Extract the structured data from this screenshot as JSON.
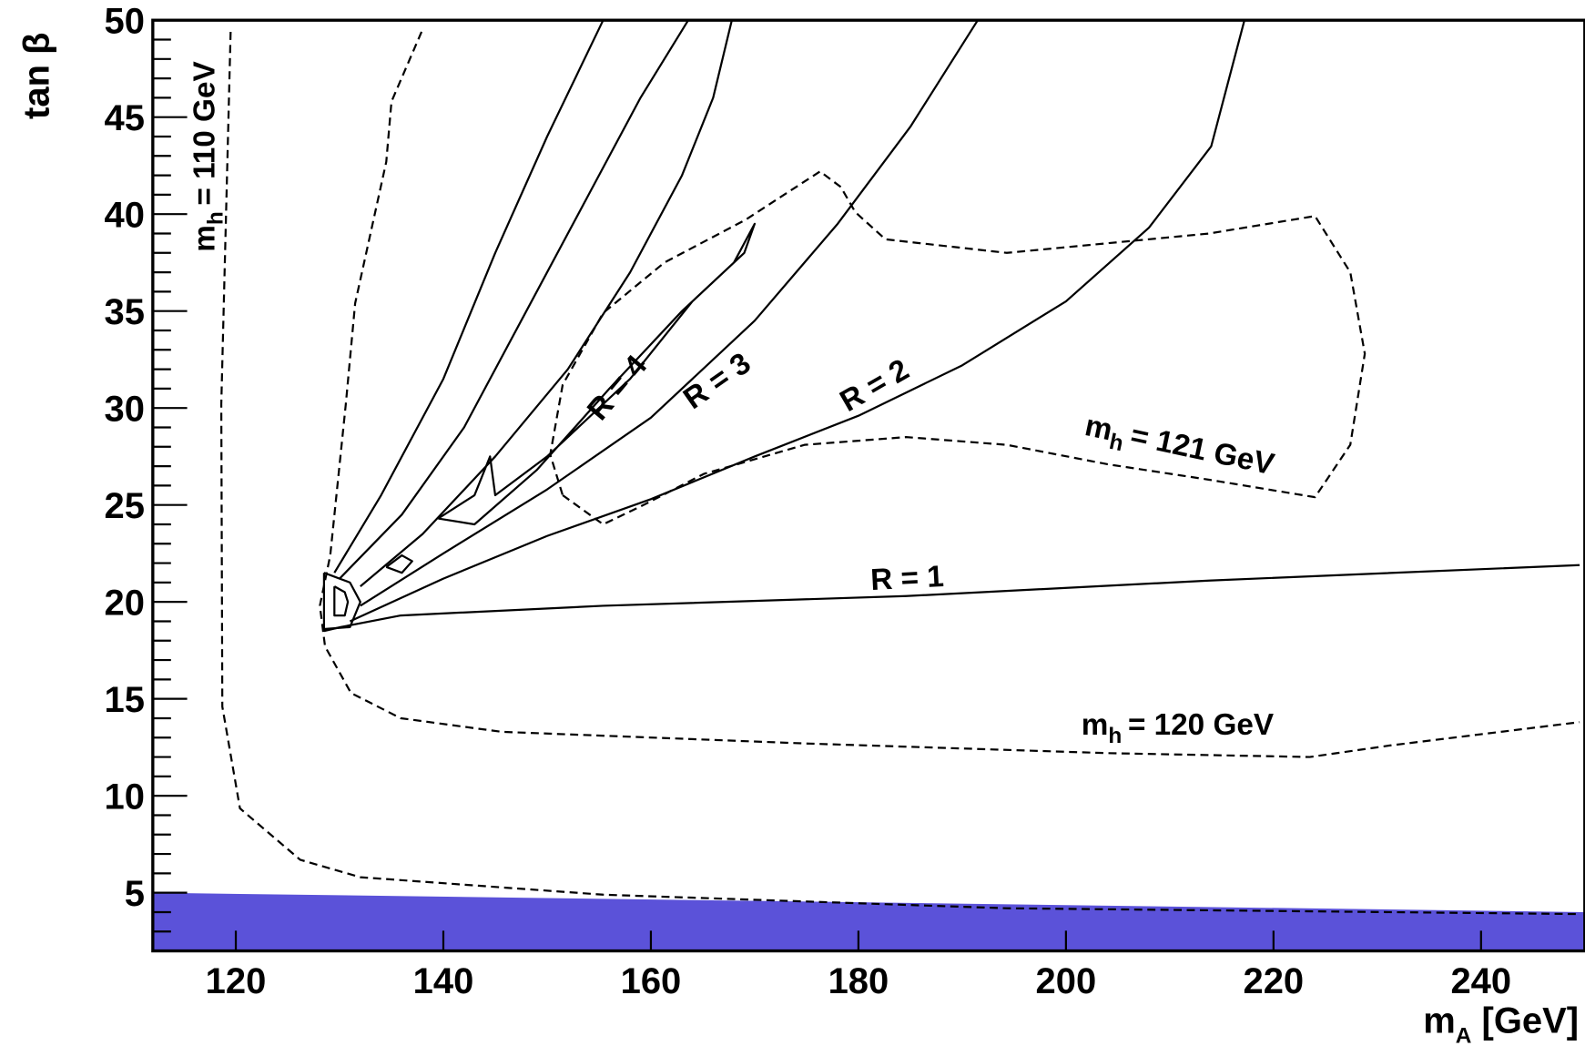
{
  "chart_data": {
    "type": "contour",
    "xlim": [
      112,
      250
    ],
    "ylim": [
      2,
      50
    ],
    "xticks": [
      120,
      140,
      160,
      180,
      200,
      220,
      240
    ],
    "yticks": [
      5,
      10,
      15,
      20,
      25,
      30,
      35,
      40,
      45,
      50
    ],
    "yminorticks": [
      2,
      3,
      4,
      6,
      7,
      8,
      9,
      11,
      12,
      13,
      14,
      16,
      17,
      18,
      19,
      21,
      22,
      23,
      24,
      26,
      27,
      28,
      29,
      31,
      32,
      33,
      34,
      36,
      37,
      38,
      39,
      41,
      42,
      43,
      44,
      46,
      47,
      48,
      49
    ],
    "x_label": {
      "symbol": "m",
      "subscript": "A",
      "text": "[GeV]"
    },
    "y_label": "tan β",
    "band": {
      "color": "#5b52d9",
      "x": [
        112,
        250
      ],
      "upper": [
        5,
        4
      ]
    },
    "series": [
      {
        "color": "#000000",
        "style": "dashed",
        "x": [
          119.5,
          118.6,
          118.7,
          120.4,
          126.2,
          132,
          155.4,
          194.3,
          249.5
        ],
        "y": [
          49.4,
          30.2,
          14.6,
          9.35,
          6.7,
          5.8,
          4.9,
          4.2,
          3.9
        ]
      },
      {
        "color": "#000000",
        "style": "dashed",
        "x": [
          137.9,
          135,
          134.5,
          131.5,
          130.6,
          129.1,
          128.1,
          128.6,
          131.1,
          135.9,
          145.6,
          174.8,
          204,
          223.5,
          231.3,
          249.5
        ],
        "y": [
          49.4,
          45.8,
          42.7,
          35.4,
          30.2,
          22.4,
          19.8,
          17.7,
          15.3,
          14,
          13.3,
          12.7,
          12.2,
          12,
          12.6,
          13.8
        ]
      },
      {
        "color": "#000000",
        "style": "dashed",
        "x": [
          151.5,
          155.4,
          159.3,
          165.1,
          174.8,
          184.6,
          194.3,
          204,
          213.8,
          224,
          227.4,
          228.8,
          227.4,
          224,
          213.8,
          194.3,
          182.6,
          179.7,
          178.3,
          176.3,
          169.1,
          161.3,
          155.4,
          151.5,
          150.3,
          151.5
        ],
        "y": [
          25.5,
          24,
          25,
          26.6,
          28.1,
          28.5,
          28.1,
          27.1,
          26.3,
          25.4,
          28.1,
          32.8,
          37,
          39.9,
          39,
          38,
          38.7,
          40.1,
          41.4,
          42.2,
          39.7,
          37.5,
          34.9,
          31.2,
          27.6,
          25.5
        ]
      },
      {
        "color": "#000000",
        "style": "solid",
        "x": [
          128.5,
          130.1,
          135.9,
          155.4,
          184.6,
          213.8,
          249.5
        ],
        "y": [
          18.5,
          18.7,
          19.3,
          19.8,
          20.3,
          21.1,
          21.9
        ]
      },
      {
        "color": "#000000",
        "style": "solid",
        "x": [
          131,
          140,
          150,
          160,
          170,
          180,
          190,
          200,
          208,
          214,
          217.2
        ],
        "y": [
          19,
          21.2,
          23.4,
          25.3,
          27.5,
          29.6,
          32.2,
          35.5,
          39.3,
          43.5,
          50
        ]
      },
      {
        "color": "#000000",
        "style": "solid",
        "x": [
          132,
          140,
          150,
          160,
          170,
          178,
          185,
          191.5
        ],
        "y": [
          19.8,
          22.5,
          25.8,
          29.5,
          34.5,
          39.5,
          44.5,
          50
        ]
      },
      {
        "color": "#000000",
        "style": "solid",
        "x": [
          132,
          138,
          145,
          152,
          158,
          163,
          166,
          167.8
        ],
        "y": [
          20.8,
          23.5,
          27.5,
          32,
          37,
          42,
          46,
          50
        ]
      },
      {
        "color": "#000000",
        "style": "solid",
        "x": [
          130,
          136,
          142,
          148,
          154,
          159,
          163.6
        ],
        "y": [
          21.2,
          24.5,
          29,
          35,
          41,
          46,
          50
        ]
      },
      {
        "color": "#000000",
        "style": "solid",
        "x": [
          129.5,
          134,
          140,
          145,
          150,
          155.4
        ],
        "y": [
          21.5,
          25.5,
          31.5,
          38,
          44,
          50
        ]
      },
      {
        "color": "#000000",
        "style": "solid",
        "x": [
          139.5,
          143,
          144.5,
          145,
          150,
          158,
          164,
          169,
          170,
          168,
          163,
          156,
          149,
          143,
          139.5
        ],
        "y": [
          24.3,
          25.5,
          27.5,
          25.5,
          27.5,
          31.5,
          35.5,
          38,
          39.5,
          37.5,
          35,
          31,
          26.8,
          24,
          24.3
        ]
      },
      {
        "color": "#000000",
        "style": "solid",
        "x": [
          128.5,
          131,
          132,
          131,
          128.5,
          128.5
        ],
        "y": [
          21.5,
          21,
          20,
          18.7,
          18.6,
          21.5
        ]
      },
      {
        "color": "#000000",
        "style": "solid",
        "x": [
          129.5,
          130.5,
          130.8,
          130.5,
          129.5,
          129.5
        ],
        "y": [
          20.8,
          20.5,
          20,
          19.3,
          19.3,
          20.8
        ]
      },
      {
        "color": "#000000",
        "style": "solid",
        "x": [
          134.5,
          136,
          137,
          136,
          134.5
        ],
        "y": [
          21.8,
          22.4,
          22.1,
          21.5,
          21.8
        ]
      }
    ],
    "annotations": [
      {
        "symbol": "m",
        "subscript": "h",
        "text": "= 110 GeV"
      },
      {
        "text": "R = 4"
      },
      {
        "text": "R = 3"
      },
      {
        "text": "R = 2"
      },
      {
        "text": "R = 1"
      },
      {
        "symbol": "m",
        "subscript": "h",
        "text": "= 121 GeV"
      },
      {
        "symbol": "m",
        "subscript": "h",
        "text": "= 120 GeV"
      }
    ]
  }
}
